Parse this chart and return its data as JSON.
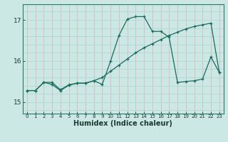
{
  "xlabel": "Humidex (Indice chaleur)",
  "bg_color": "#cce8e4",
  "line_color": "#1a6b5e",
  "xlim": [
    -0.5,
    23.5
  ],
  "ylim": [
    14.72,
    17.38
  ],
  "yticks": [
    15,
    16,
    17
  ],
  "ytick_labels": [
    "15",
    "16",
    "17"
  ],
  "line1_x": [
    0,
    1,
    2,
    3,
    4,
    5,
    6,
    7,
    8,
    9,
    10,
    11,
    12,
    13,
    14,
    15,
    16,
    17,
    18,
    19,
    20,
    21,
    22,
    23
  ],
  "line1_y": [
    15.28,
    15.28,
    15.48,
    15.43,
    15.28,
    15.41,
    15.46,
    15.46,
    15.52,
    15.43,
    16.0,
    16.62,
    17.02,
    17.08,
    17.08,
    16.72,
    16.72,
    16.58,
    15.48,
    15.5,
    15.52,
    15.56,
    16.1,
    15.72
  ],
  "line2_x": [
    0,
    1,
    2,
    3,
    4,
    5,
    6,
    7,
    8,
    9,
    10,
    11,
    12,
    13,
    14,
    15,
    16,
    17,
    18,
    19,
    20,
    21,
    22,
    23
  ],
  "line2_y": [
    15.28,
    15.28,
    15.48,
    15.48,
    15.3,
    15.42,
    15.46,
    15.46,
    15.52,
    15.6,
    15.75,
    15.9,
    16.05,
    16.2,
    16.32,
    16.42,
    16.52,
    16.62,
    16.7,
    16.78,
    16.84,
    16.88,
    16.92,
    15.72
  ],
  "grid_v_color": "#ddb8b8",
  "grid_h_color": "#b0d8d4"
}
